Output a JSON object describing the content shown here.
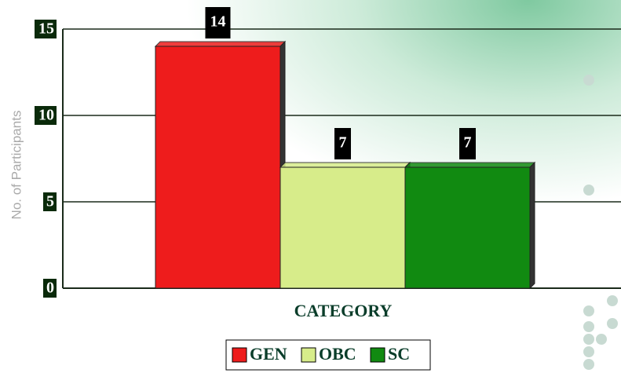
{
  "chart_data": {
    "type": "bar",
    "y_label": "No. of Participants",
    "x_label": "CATEGORY",
    "categories": [
      null
    ],
    "series": [
      {
        "name": "GEN",
        "color": "#ee1c1c",
        "values": [
          14
        ]
      },
      {
        "name": "OBC",
        "color": "#d7ec8a",
        "values": [
          7
        ]
      },
      {
        "name": "SC",
        "color": "#118a11",
        "values": [
          7
        ]
      }
    ],
    "ylim": [
      0,
      15
    ],
    "yticks": [
      0,
      5,
      10,
      15
    ],
    "grid": true,
    "legend": "bottom"
  }
}
